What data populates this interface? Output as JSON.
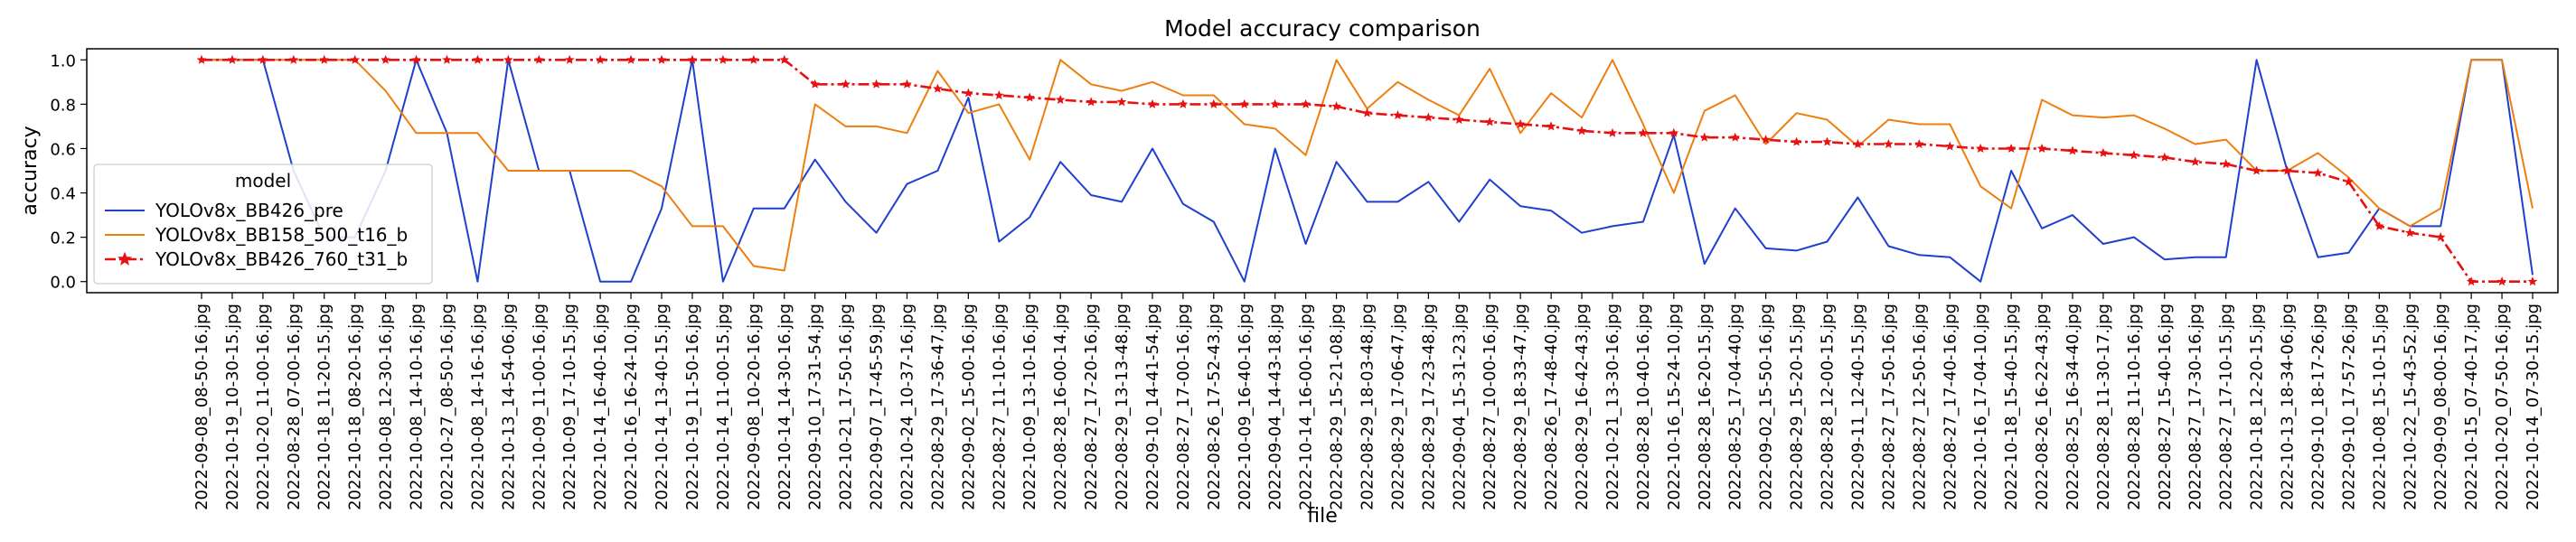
{
  "chart_data": {
    "type": "line",
    "title": "Model accuracy comparison",
    "xlabel": "file",
    "ylabel": "accuracy",
    "ylim": [
      -0.05,
      1.05
    ],
    "yticks": [
      0.0,
      0.2,
      0.4,
      0.6,
      0.8,
      1.0
    ],
    "ytick_labels": [
      "0.0",
      "0.2",
      "0.4",
      "0.6",
      "0.8",
      "1.0"
    ],
    "grid": false,
    "legend": {
      "title": "model",
      "placement": "center-left"
    },
    "categories": [
      "2022-09-08_08-50-16.jpg",
      "2022-10-19_10-30-15.jpg",
      "2022-10-20_11-00-16.jpg",
      "2022-08-28_07-00-16.jpg",
      "2022-10-18_11-20-15.jpg",
      "2022-10-18_08-20-16.jpg",
      "2022-10-08_12-30-16.jpg",
      "2022-10-08_14-10-16.jpg",
      "2022-10-27_08-50-16.jpg",
      "2022-10-08_14-16-16.jpg",
      "2022-10-13_14-54-06.jpg",
      "2022-10-09_11-00-16.jpg",
      "2022-10-09_17-10-15.jpg",
      "2022-10-14_16-40-16.jpg",
      "2022-10-16_16-24-10.jpg",
      "2022-10-14_13-40-15.jpg",
      "2022-10-19_11-50-16.jpg",
      "2022-10-14_11-00-15.jpg",
      "2022-09-08_10-20-16.jpg",
      "2022-10-14_14-30-16.jpg",
      "2022-09-10_17-31-54.jpg",
      "2022-10-21_17-50-16.jpg",
      "2022-09-07_17-45-59.jpg",
      "2022-10-24_10-37-16.jpg",
      "2022-08-29_17-36-47.jpg",
      "2022-09-02_15-00-16.jpg",
      "2022-08-27_11-10-16.jpg",
      "2022-10-09_13-10-16.jpg",
      "2022-08-28_16-00-14.jpg",
      "2022-08-27_17-20-16.jpg",
      "2022-08-29_13-13-48.jpg",
      "2022-09-10_14-41-54.jpg",
      "2022-08-27_17-00-16.jpg",
      "2022-08-26_17-52-43.jpg",
      "2022-10-09_16-40-16.jpg",
      "2022-09-04_14-43-18.jpg",
      "2022-10-14_16-00-16.jpg",
      "2022-08-29_15-21-08.jpg",
      "2022-08-29_18-03-48.jpg",
      "2022-08-29_17-06-47.jpg",
      "2022-08-29_17-23-48.jpg",
      "2022-09-04_15-31-23.jpg",
      "2022-08-27_10-00-16.jpg",
      "2022-08-29_18-33-47.jpg",
      "2022-08-26_17-48-40.jpg",
      "2022-08-29_16-42-43.jpg",
      "2022-10-21_13-30-16.jpg",
      "2022-08-28_10-40-16.jpg",
      "2022-10-16_15-24-10.jpg",
      "2022-08-28_16-20-15.jpg",
      "2022-08-25_17-04-40.jpg",
      "2022-09-02_15-50-16.jpg",
      "2022-08-29_15-20-15.jpg",
      "2022-08-28_12-00-15.jpg",
      "2022-09-11_12-40-15.jpg",
      "2022-08-27_17-50-16.jpg",
      "2022-08-27_12-50-16.jpg",
      "2022-08-27_17-40-16.jpg",
      "2022-10-16_17-04-10.jpg",
      "2022-10-18_15-40-15.jpg",
      "2022-08-26_16-22-43.jpg",
      "2022-08-25_16-34-40.jpg",
      "2022-08-28_11-30-17.jpg",
      "2022-08-28_11-10-16.jpg",
      "2022-08-27_15-40-16.jpg",
      "2022-08-27_17-30-16.jpg",
      "2022-08-27_17-10-15.jpg",
      "2022-10-18_12-20-15.jpg",
      "2022-10-13_18-34-06.jpg",
      "2022-09-10_18-17-26.jpg",
      "2022-09-10_17-57-26.jpg",
      "2022-10-08_15-10-15.jpg",
      "2022-10-22_15-43-52.jpg",
      "2022-09-09_08-00-16.jpg",
      "2022-10-15_07-40-17.jpg",
      "2022-10-20_07-50-16.jpg",
      "2022-10-14_07-30-15.jpg"
    ],
    "series": [
      {
        "name": "YOLOv8x_BB426_pre",
        "color": "#1f3fcf",
        "marker": "none",
        "values": [
          1.0,
          1.0,
          1.0,
          0.5,
          0.2,
          0.2,
          0.5,
          1.0,
          0.67,
          0.0,
          1.0,
          0.5,
          0.5,
          0.0,
          0.0,
          0.33,
          1.0,
          0.0,
          0.33,
          0.33,
          0.55,
          0.36,
          0.22,
          0.44,
          0.5,
          0.83,
          0.18,
          0.29,
          0.54,
          0.39,
          0.36,
          0.6,
          0.35,
          0.27,
          0.0,
          0.6,
          0.17,
          0.54,
          0.36,
          0.36,
          0.45,
          0.27,
          0.46,
          0.34,
          0.32,
          0.22,
          0.25,
          0.27,
          0.66,
          0.08,
          0.33,
          0.15,
          0.14,
          0.18,
          0.38,
          0.16,
          0.12,
          0.11,
          0.0,
          0.5,
          0.24,
          0.3,
          0.17,
          0.2,
          0.1,
          0.11,
          0.11,
          1.0,
          0.5,
          0.11,
          0.13,
          0.33,
          0.25,
          0.25,
          1.0,
          1.0,
          0.03
        ]
      },
      {
        "name": "YOLOv8x_BB158_500_t16_b",
        "color": "#ee7f0e",
        "marker": "none",
        "values": [
          1.0,
          1.0,
          1.0,
          1.0,
          1.0,
          1.0,
          0.86,
          0.67,
          0.67,
          0.67,
          0.5,
          0.5,
          0.5,
          0.5,
          0.5,
          0.43,
          0.25,
          0.25,
          0.07,
          0.05,
          0.8,
          0.7,
          0.7,
          0.67,
          0.95,
          0.76,
          0.8,
          0.55,
          1.0,
          0.89,
          0.86,
          0.9,
          0.84,
          0.84,
          0.71,
          0.69,
          0.57,
          1.0,
          0.78,
          0.9,
          0.82,
          0.75,
          0.96,
          0.67,
          0.85,
          0.74,
          1.0,
          0.71,
          0.4,
          0.77,
          0.84,
          0.62,
          0.76,
          0.73,
          0.61,
          0.73,
          0.71,
          0.71,
          0.43,
          0.33,
          0.82,
          0.75,
          0.74,
          0.75,
          0.69,
          0.62,
          0.64,
          0.5,
          0.5,
          0.58,
          0.47,
          0.33,
          0.25,
          0.33,
          1.0,
          1.0,
          0.33
        ]
      },
      {
        "name": "YOLOv8x_BB426_760_t31_b",
        "color": "#e81010",
        "marker": "star",
        "values": [
          1.0,
          1.0,
          1.0,
          1.0,
          1.0,
          1.0,
          1.0,
          1.0,
          1.0,
          1.0,
          1.0,
          1.0,
          1.0,
          1.0,
          1.0,
          1.0,
          1.0,
          1.0,
          1.0,
          1.0,
          0.89,
          0.89,
          0.89,
          0.89,
          0.87,
          0.85,
          0.84,
          0.83,
          0.82,
          0.81,
          0.81,
          0.8,
          0.8,
          0.8,
          0.8,
          0.8,
          0.8,
          0.79,
          0.76,
          0.75,
          0.74,
          0.73,
          0.72,
          0.71,
          0.7,
          0.68,
          0.67,
          0.67,
          0.67,
          0.65,
          0.65,
          0.64,
          0.63,
          0.63,
          0.62,
          0.62,
          0.62,
          0.61,
          0.6,
          0.6,
          0.6,
          0.59,
          0.58,
          0.57,
          0.56,
          0.54,
          0.53,
          0.5,
          0.5,
          0.49,
          0.45,
          0.25,
          0.22,
          0.2,
          0.0,
          0.0,
          0.0
        ]
      }
    ]
  }
}
